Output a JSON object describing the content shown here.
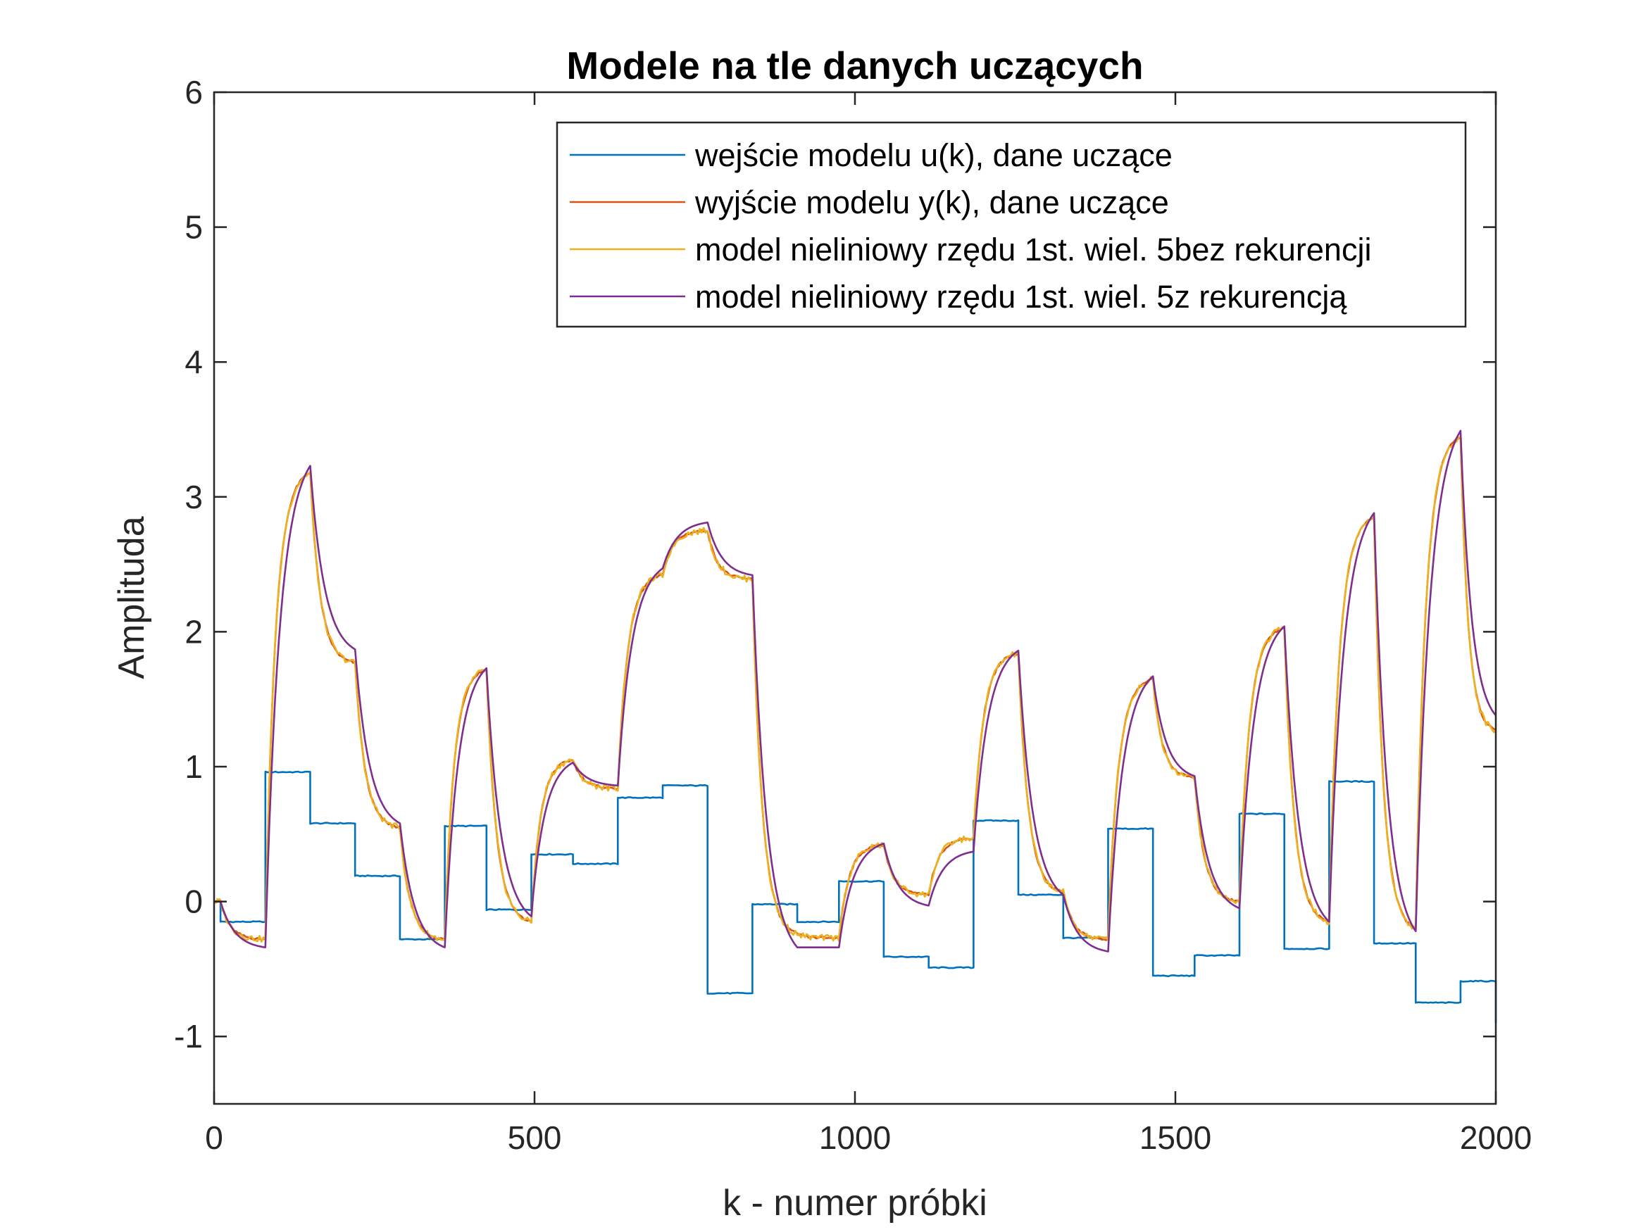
{
  "chart_data": {
    "type": "line",
    "title": "Modele na tle danych uczących",
    "xlabel": "k - numer próbki",
    "ylabel": "Amplituda",
    "xlim": [
      0,
      2000
    ],
    "ylim": [
      -1.5,
      6
    ],
    "xticks": [
      0,
      500,
      1000,
      1500,
      2000
    ],
    "xtick_labels": [
      "0",
      "500",
      "1000",
      "1500",
      "2000"
    ],
    "yticks": [
      -1,
      0,
      1,
      2,
      3,
      4,
      5,
      6
    ],
    "ytick_labels": [
      "-1",
      "0",
      "1",
      "2",
      "3",
      "4",
      "5",
      "6"
    ],
    "grid": false,
    "legend_position": "top-right",
    "series": [
      {
        "name": "wejście modelu u(k), dane uczące",
        "color": "#0072BD",
        "style": "step",
        "x": [
          0,
          10,
          80,
          150,
          220,
          290,
          360,
          425,
          495,
          560,
          630,
          700,
          770,
          840,
          910,
          975,
          1045,
          1115,
          1185,
          1255,
          1325,
          1395,
          1465,
          1530,
          1600,
          1670,
          1740,
          1810,
          1875,
          1945,
          2000
        ],
        "values": [
          0.0,
          -0.15,
          0.96,
          0.58,
          0.19,
          -0.28,
          0.56,
          -0.06,
          0.35,
          0.28,
          0.77,
          0.86,
          -0.68,
          -0.02,
          -0.15,
          0.15,
          -0.41,
          -0.49,
          0.6,
          0.05,
          -0.27,
          0.54,
          -0.55,
          -0.4,
          0.65,
          -0.35,
          0.89,
          -0.31,
          -0.75,
          -0.59,
          -0.9
        ]
      },
      {
        "name": "wyjście modelu y(k), dane uczące",
        "color": "#D95319",
        "x": [
          0,
          10,
          80,
          150,
          220,
          290,
          360,
          425,
          495,
          560,
          630,
          700,
          770,
          840,
          910,
          975,
          1045,
          1115,
          1185,
          1255,
          1325,
          1395,
          1465,
          1530,
          1600,
          1670,
          1740,
          1810,
          1875,
          1945,
          2000
        ],
        "values": [
          0.0,
          0.0,
          -0.28,
          3.18,
          1.77,
          0.55,
          -0.28,
          1.72,
          -0.15,
          1.05,
          0.84,
          2.42,
          2.75,
          2.39,
          -0.24,
          -0.27,
          0.42,
          0.05,
          0.47,
          1.84,
          0.07,
          -0.28,
          1.65,
          0.92,
          0.0,
          2.03,
          -0.15,
          2.85,
          -0.2,
          3.45,
          1.27
        ]
      },
      {
        "name": "model nieliniowy rzędu 1st. wiel. 5bez rekurencji",
        "color": "#EDB120",
        "x": [
          0,
          10,
          80,
          150,
          220,
          290,
          360,
          425,
          495,
          560,
          630,
          700,
          770,
          840,
          910,
          975,
          1045,
          1115,
          1185,
          1255,
          1325,
          1395,
          1465,
          1530,
          1600,
          1670,
          1740,
          1810,
          1875,
          1945,
          2000
        ],
        "values": [
          0.0,
          0.0,
          -0.28,
          3.18,
          1.77,
          0.55,
          -0.28,
          1.72,
          -0.15,
          1.05,
          0.84,
          2.42,
          2.75,
          2.39,
          -0.24,
          -0.27,
          0.42,
          0.05,
          0.47,
          1.84,
          0.07,
          -0.28,
          1.65,
          0.92,
          0.0,
          2.03,
          -0.15,
          2.85,
          -0.2,
          3.45,
          1.27
        ]
      },
      {
        "name": "model nieliniowy rzędu 1st. wiel. 5z rekurencją",
        "color": "#7E2F8E",
        "x": [
          0,
          10,
          80,
          150,
          220,
          290,
          360,
          425,
          495,
          560,
          630,
          700,
          770,
          840,
          910,
          975,
          1045,
          1115,
          1185,
          1255,
          1325,
          1395,
          1465,
          1530,
          1600,
          1670,
          1740,
          1810,
          1875,
          1945,
          2000
        ],
        "values": [
          0.0,
          0.0,
          -0.34,
          3.23,
          1.87,
          0.58,
          -0.34,
          1.73,
          -0.11,
          1.03,
          0.86,
          2.47,
          2.81,
          2.42,
          -0.34,
          -0.34,
          0.43,
          -0.03,
          0.37,
          1.86,
          0.05,
          -0.37,
          1.67,
          0.93,
          -0.05,
          2.04,
          -0.15,
          2.88,
          -0.22,
          3.49,
          1.38
        ]
      }
    ]
  }
}
